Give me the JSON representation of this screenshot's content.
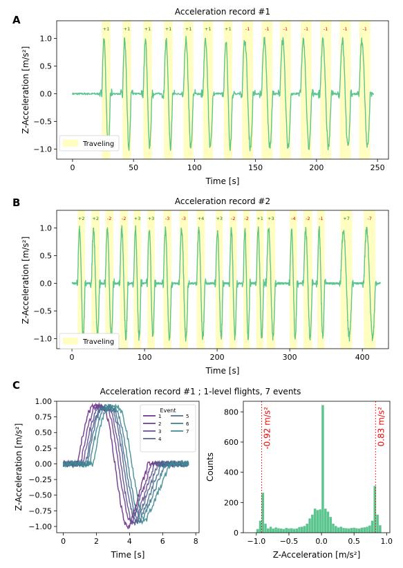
{
  "colors": {
    "signal": "#5cc58f",
    "traveling": "#fffdc0",
    "up": "#1a7a1a",
    "down": "#dd0000",
    "threshold": "#ee0000",
    "hist": "#5cc58f",
    "event_colors": [
      "#6b2f86",
      "#6e3c8f",
      "#61508f",
      "#52608f",
      "#476d91",
      "#3e7e92",
      "#3e8c91"
    ]
  },
  "panels": {
    "A": {
      "letter": "A",
      "chart_data": {
        "type": "line",
        "title": "Acceleration record #1",
        "xlabel": "Time [s]",
        "ylabel": "Z-Acceleration [m/s²]",
        "xlim": [
          -13,
          259
        ],
        "ylim": [
          -1.18,
          1.32
        ],
        "xticks": [
          0,
          50,
          100,
          150,
          200,
          250
        ],
        "yticks": [
          -1.0,
          -0.5,
          0.0,
          0.5,
          1.0
        ],
        "signal_range": [
          0,
          247
        ],
        "legend": {
          "label": "Traveling",
          "position": "lower-left"
        },
        "events": [
          {
            "start": 24,
            "end": 31,
            "label": "+1"
          },
          {
            "start": 41,
            "end": 48,
            "label": "+1"
          },
          {
            "start": 58,
            "end": 65,
            "label": "+1"
          },
          {
            "start": 75,
            "end": 82,
            "label": "+1"
          },
          {
            "start": 91,
            "end": 99,
            "label": "+1"
          },
          {
            "start": 107,
            "end": 115,
            "label": "+1"
          },
          {
            "start": 124,
            "end": 131,
            "label": "+1"
          },
          {
            "start": 139,
            "end": 148,
            "label": "-1"
          },
          {
            "start": 155,
            "end": 164,
            "label": "-1"
          },
          {
            "start": 170,
            "end": 179,
            "label": "-1"
          },
          {
            "start": 187,
            "end": 196,
            "label": "-1"
          },
          {
            "start": 203,
            "end": 212,
            "label": "-1"
          },
          {
            "start": 219,
            "end": 228,
            "label": "-1"
          },
          {
            "start": 235,
            "end": 244,
            "label": "-1"
          }
        ]
      }
    },
    "B": {
      "letter": "B",
      "chart_data": {
        "type": "line",
        "title": "Acceleration record #2",
        "xlabel": "Time [s]",
        "ylabel": "Z-Acceleration [m/s²]",
        "xlim": [
          -21,
          436
        ],
        "ylim": [
          -1.18,
          1.32
        ],
        "xticks": [
          0,
          100,
          200,
          300,
          400
        ],
        "yticks": [
          -1.0,
          -0.5,
          0.0,
          0.5,
          1.0
        ],
        "signal_range": [
          0,
          425
        ],
        "legend": {
          "label": "Traveling",
          "position": "lower-left"
        },
        "events": [
          {
            "start": 8,
            "end": 18,
            "label": "+2"
          },
          {
            "start": 27,
            "end": 38,
            "label": "+2"
          },
          {
            "start": 46,
            "end": 57,
            "label": "-2"
          },
          {
            "start": 66,
            "end": 77,
            "label": "-2"
          },
          {
            "start": 85,
            "end": 95,
            "label": "+3"
          },
          {
            "start": 104,
            "end": 114,
            "label": "+3"
          },
          {
            "start": 126,
            "end": 137,
            "label": "-3"
          },
          {
            "start": 148,
            "end": 160,
            "label": "-3"
          },
          {
            "start": 172,
            "end": 183,
            "label": "+4"
          },
          {
            "start": 198,
            "end": 208,
            "label": "+3"
          },
          {
            "start": 217,
            "end": 227,
            "label": "-2"
          },
          {
            "start": 236,
            "end": 245,
            "label": "-2"
          },
          {
            "start": 254,
            "end": 264,
            "label": "+1"
          },
          {
            "start": 268,
            "end": 280,
            "label": "+3"
          },
          {
            "start": 300,
            "end": 310,
            "label": "-4"
          },
          {
            "start": 319,
            "end": 331,
            "label": "-2"
          },
          {
            "start": 338,
            "end": 348,
            "label": "-1"
          },
          {
            "start": 370,
            "end": 386,
            "label": "+7"
          },
          {
            "start": 402,
            "end": 418,
            "label": "-7"
          }
        ]
      }
    },
    "C": {
      "letter": "C",
      "title": "Acceleration record #1 ; 1-level flights, 7 events",
      "left_chart": {
        "type": "line",
        "xlabel": "Time [s]",
        "ylabel": "Z-Acceleration [m/s²]",
        "xlim": [
          -0.4,
          8.2
        ],
        "ylim": [
          -1.1,
          1.0
        ],
        "xticks": [
          0,
          2,
          4,
          6,
          8
        ],
        "yticks": [
          -1.0,
          -0.75,
          -0.5,
          -0.25,
          0.0,
          0.25,
          0.5,
          0.75,
          1.0
        ],
        "legend": {
          "title": "Event",
          "position": "top-right",
          "entries": [
            "1",
            "2",
            "3",
            "4",
            "5",
            "6",
            "7"
          ]
        },
        "series": [
          {
            "name": "1",
            "peak_time": 1.85,
            "trough_time": 3.95,
            "end_time": 5.15,
            "peak": 0.93,
            "trough": -1.03
          },
          {
            "name": "2",
            "peak_time": 2.05,
            "trough_time": 4.15,
            "end_time": 5.35,
            "peak": 0.92,
            "trough": -0.95
          },
          {
            "name": "3",
            "peak_time": 2.2,
            "trough_time": 4.3,
            "end_time": 5.55,
            "peak": 0.91,
            "trough": -0.97
          },
          {
            "name": "4",
            "peak_time": 2.35,
            "trough_time": 4.45,
            "end_time": 5.75,
            "peak": 0.9,
            "trough": -0.93
          },
          {
            "name": "5",
            "peak_time": 2.45,
            "trough_time": 4.6,
            "end_time": 5.95,
            "peak": 0.91,
            "trough": -0.94
          },
          {
            "name": "6",
            "peak_time": 2.6,
            "trough_time": 4.75,
            "end_time": 6.2,
            "peak": 0.9,
            "trough": -0.92
          },
          {
            "name": "7",
            "peak_time": 2.8,
            "trough_time": 5.0,
            "end_time": 6.5,
            "peak": 0.92,
            "trough": -0.9
          }
        ]
      },
      "right_chart": {
        "type": "bar",
        "xlabel": "Z-Acceleration [m/s²]",
        "ylabel": "Counts",
        "xlim": [
          -1.2,
          1.05
        ],
        "ylim": [
          0,
          870
        ],
        "xticks": [
          -1.0,
          -0.5,
          0.0,
          0.5,
          1.0
        ],
        "yticks": [
          0,
          200,
          400,
          600,
          800
        ],
        "bin_width": 0.04,
        "bins": [
          {
            "x": -0.98,
            "count": 25
          },
          {
            "x": -0.94,
            "count": 80
          },
          {
            "x": -0.9,
            "count": 265
          },
          {
            "x": -0.86,
            "count": 60
          },
          {
            "x": -0.82,
            "count": 28
          },
          {
            "x": -0.78,
            "count": 40
          },
          {
            "x": -0.74,
            "count": 28
          },
          {
            "x": -0.7,
            "count": 35
          },
          {
            "x": -0.66,
            "count": 30
          },
          {
            "x": -0.62,
            "count": 28
          },
          {
            "x": -0.58,
            "count": 25
          },
          {
            "x": -0.54,
            "count": 32
          },
          {
            "x": -0.5,
            "count": 28
          },
          {
            "x": -0.46,
            "count": 30
          },
          {
            "x": -0.42,
            "count": 26
          },
          {
            "x": -0.38,
            "count": 28
          },
          {
            "x": -0.34,
            "count": 38
          },
          {
            "x": -0.3,
            "count": 40
          },
          {
            "x": -0.26,
            "count": 45
          },
          {
            "x": -0.22,
            "count": 60
          },
          {
            "x": -0.18,
            "count": 95
          },
          {
            "x": -0.14,
            "count": 120
          },
          {
            "x": -0.1,
            "count": 160
          },
          {
            "x": -0.06,
            "count": 150
          },
          {
            "x": -0.02,
            "count": 155
          },
          {
            "x": 0.02,
            "count": 845
          },
          {
            "x": 0.06,
            "count": 160
          },
          {
            "x": 0.1,
            "count": 140
          },
          {
            "x": 0.14,
            "count": 105
          },
          {
            "x": 0.18,
            "count": 60
          },
          {
            "x": 0.22,
            "count": 45
          },
          {
            "x": 0.26,
            "count": 35
          },
          {
            "x": 0.3,
            "count": 40
          },
          {
            "x": 0.34,
            "count": 32
          },
          {
            "x": 0.38,
            "count": 30
          },
          {
            "x": 0.42,
            "count": 28
          },
          {
            "x": 0.46,
            "count": 32
          },
          {
            "x": 0.5,
            "count": 34
          },
          {
            "x": 0.54,
            "count": 30
          },
          {
            "x": 0.58,
            "count": 28
          },
          {
            "x": 0.62,
            "count": 34
          },
          {
            "x": 0.66,
            "count": 36
          },
          {
            "x": 0.7,
            "count": 40
          },
          {
            "x": 0.74,
            "count": 48
          },
          {
            "x": 0.78,
            "count": 80
          },
          {
            "x": 0.82,
            "count": 310
          },
          {
            "x": 0.86,
            "count": 120
          },
          {
            "x": 0.9,
            "count": 50
          }
        ],
        "thresholds": [
          {
            "value": -0.92,
            "label": "-0.92 m/s²"
          },
          {
            "value": 0.83,
            "label": "0.83 m/s²"
          }
        ]
      }
    }
  }
}
